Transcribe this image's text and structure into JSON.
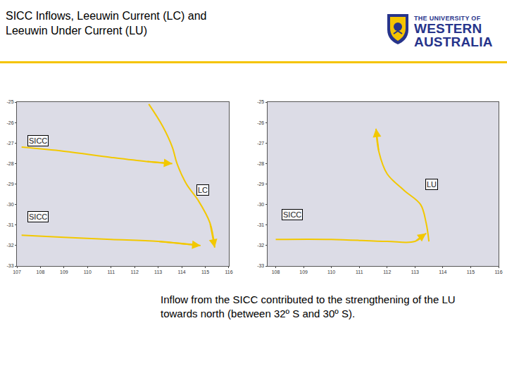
{
  "slide": {
    "title": [
      "SICC Inflows, Leeuwin Current (LC) and",
      "Leeuwin Under Current (LU)"
    ],
    "logo": [
      "THE UNIVERSITY OF",
      "WESTERN",
      "AUSTRALIA"
    ],
    "caption": "Inflow from the SICC contributed to the strengthening of the LU  towards north (between 32º S and 30º S)."
  },
  "chart_data": [
    {
      "type": "map",
      "color": "#f2c800",
      "xlim": [
        107,
        116
      ],
      "xticks": [
        107,
        108,
        109,
        110,
        111,
        112,
        113,
        114,
        115,
        116
      ],
      "ylim": [
        -33,
        -25
      ],
      "yticks": [
        -33,
        -32,
        -31,
        -30,
        -29,
        -28,
        -27,
        -26,
        -25
      ],
      "paths": [
        {
          "x": [
            107.2,
            109,
            111,
            112.5,
            113.6
          ],
          "y": [
            -27.2,
            -27.4,
            -27.7,
            -27.9,
            -28.0
          ]
        },
        {
          "x": [
            112.6,
            113.2,
            113.6,
            113.8,
            114.2,
            114.7,
            115.2,
            115.4
          ],
          "y": [
            -25.1,
            -26.2,
            -27.2,
            -28.0,
            -29.0,
            -29.8,
            -30.9,
            -32.1
          ]
        },
        {
          "x": [
            107.2,
            109,
            111,
            113,
            114.8
          ],
          "y": [
            -31.5,
            -31.6,
            -31.7,
            -31.8,
            -32.0
          ]
        }
      ],
      "labels": [
        {
          "text": "SICC",
          "x": 107.9,
          "y": -26.9
        },
        {
          "text": "LC",
          "x": 114.9,
          "y": -29.3
        },
        {
          "text": "SICC",
          "x": 107.9,
          "y": -30.6
        }
      ]
    },
    {
      "type": "map",
      "color": "#f2c800",
      "xlim": [
        107.7,
        116
      ],
      "xticks": [
        108,
        109,
        110,
        111,
        112,
        113,
        114,
        115,
        116
      ],
      "ylim": [
        -33,
        -25
      ],
      "yticks": [
        -33,
        -32,
        -31,
        -30,
        -29,
        -28,
        -27,
        -26,
        -25
      ],
      "paths": [
        {
          "x": [
            113.5,
            113.4,
            113.2,
            112.6,
            112.0,
            111.7,
            111.6
          ],
          "y": [
            -31.8,
            -30.9,
            -30.0,
            -29.3,
            -28.5,
            -27.4,
            -26.3
          ]
        },
        {
          "x": [
            108.0,
            110,
            112,
            113.0,
            113.4
          ],
          "y": [
            -31.7,
            -31.7,
            -31.8,
            -31.8,
            -31.4
          ]
        }
      ],
      "labels": [
        {
          "text": "LU",
          "x": 113.6,
          "y": -29.0
        },
        {
          "text": "SICC",
          "x": 108.6,
          "y": -30.5
        }
      ]
    }
  ]
}
